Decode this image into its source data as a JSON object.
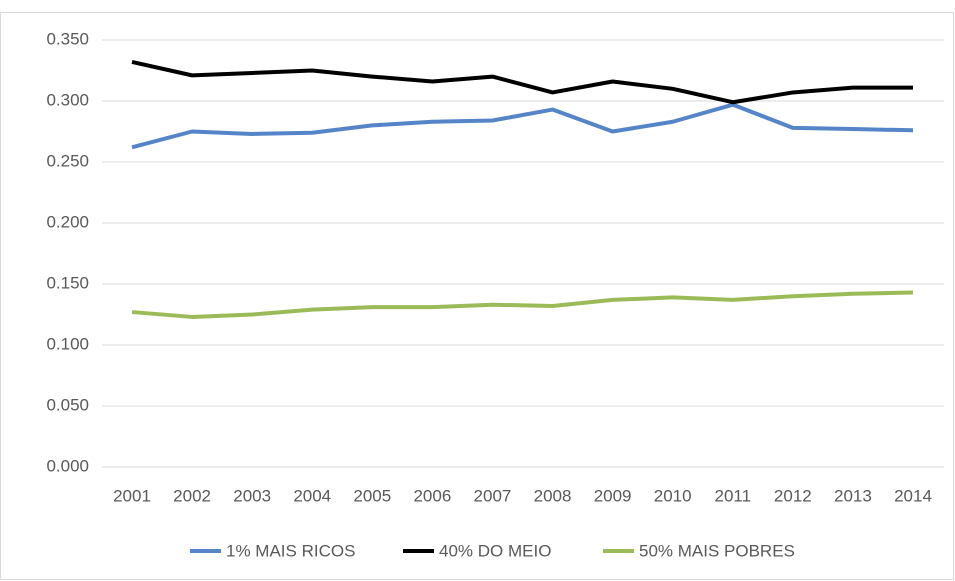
{
  "chart_data": {
    "type": "line",
    "categories": [
      "2001",
      "2002",
      "2003",
      "2004",
      "2005",
      "2006",
      "2007",
      "2008",
      "2009",
      "2010",
      "2011",
      "2012",
      "2013",
      "2014"
    ],
    "series": [
      {
        "name": "1% MAIS RICOS",
        "color": "#5585c8",
        "values": [
          0.262,
          0.275,
          0.273,
          0.274,
          0.28,
          0.283,
          0.284,
          0.293,
          0.275,
          0.283,
          0.297,
          0.278,
          0.277,
          0.276
        ]
      },
      {
        "name": "40% DO MEIO",
        "color": "#000000",
        "values": [
          0.332,
          0.321,
          0.323,
          0.325,
          0.32,
          0.316,
          0.32,
          0.307,
          0.316,
          0.31,
          0.299,
          0.307,
          0.311,
          0.311
        ]
      },
      {
        "name": "50% MAIS POBRES",
        "color": "#9bbb59",
        "values": [
          0.127,
          0.123,
          0.125,
          0.129,
          0.131,
          0.131,
          0.133,
          0.132,
          0.137,
          0.139,
          0.137,
          0.14,
          0.142,
          0.143
        ]
      }
    ],
    "ylim": [
      0,
      0.35
    ],
    "yticks": [
      {
        "value": 0,
        "label": "0.000"
      },
      {
        "value": 0.05,
        "label": "0.050"
      },
      {
        "value": 0.1,
        "label": "0.100"
      },
      {
        "value": 0.15,
        "label": "0.150"
      },
      {
        "value": 0.2,
        "label": "0.200"
      },
      {
        "value": 0.25,
        "label": "0.250"
      },
      {
        "value": 0.3,
        "label": "0.300"
      },
      {
        "value": 0.35,
        "label": "0.350"
      }
    ],
    "grid": true,
    "legend": "bottom"
  }
}
